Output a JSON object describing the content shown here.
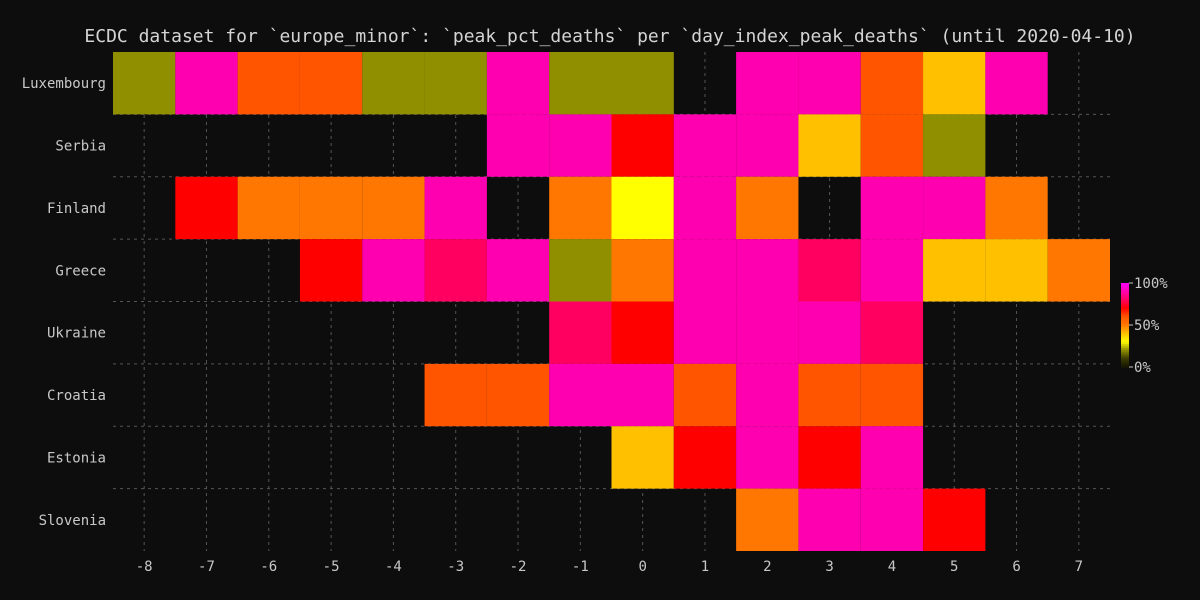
{
  "chart_data": {
    "type": "heatmap",
    "title": "ECDC dataset for `europe_minor`: `peak_pct_deaths` per `day_index_peak_deaths` (until 2020-04-10)",
    "xlabel": "",
    "ylabel": "",
    "x_ticks": [
      -8,
      -7,
      -6,
      -5,
      -4,
      -3,
      -2,
      -1,
      0,
      1,
      2,
      3,
      4,
      5,
      6,
      7
    ],
    "rows": [
      "Luxembourg",
      "Serbia",
      "Finland",
      "Greece",
      "Ukraine",
      "Croatia",
      "Estonia",
      "Slovenia"
    ],
    "colorbar": {
      "ticks": [
        "100%",
        "50%",
        "0%"
      ],
      "range": [
        0,
        100
      ]
    },
    "colors": {
      "background": "#0d0d0d",
      "olive": "#908f00",
      "magenta": "#ff00b0",
      "red": "#ff0000",
      "crimson": "#ff0060",
      "orange": "#ff7700",
      "dark_orange": "#ff5500",
      "amber": "#ffc000",
      "yellow": "#ffff00"
    },
    "cells": [
      {
        "row": "Luxembourg",
        "x": -8,
        "color": "olive"
      },
      {
        "row": "Luxembourg",
        "x": -7,
        "color": "magenta"
      },
      {
        "row": "Luxembourg",
        "x": -6,
        "color": "dark_orange"
      },
      {
        "row": "Luxembourg",
        "x": -5,
        "color": "dark_orange"
      },
      {
        "row": "Luxembourg",
        "x": -4,
        "color": "olive"
      },
      {
        "row": "Luxembourg",
        "x": -3,
        "color": "olive"
      },
      {
        "row": "Luxembourg",
        "x": -2,
        "color": "magenta"
      },
      {
        "row": "Luxembourg",
        "x": -1,
        "color": "olive"
      },
      {
        "row": "Luxembourg",
        "x": 0,
        "color": "olive"
      },
      {
        "row": "Luxembourg",
        "x": 2,
        "color": "magenta"
      },
      {
        "row": "Luxembourg",
        "x": 3,
        "color": "magenta"
      },
      {
        "row": "Luxembourg",
        "x": 4,
        "color": "dark_orange"
      },
      {
        "row": "Luxembourg",
        "x": 5,
        "color": "amber"
      },
      {
        "row": "Luxembourg",
        "x": 6,
        "color": "magenta"
      },
      {
        "row": "Serbia",
        "x": -2,
        "color": "magenta"
      },
      {
        "row": "Serbia",
        "x": -1,
        "color": "magenta"
      },
      {
        "row": "Serbia",
        "x": 0,
        "color": "red"
      },
      {
        "row": "Serbia",
        "x": 1,
        "color": "magenta"
      },
      {
        "row": "Serbia",
        "x": 2,
        "color": "magenta"
      },
      {
        "row": "Serbia",
        "x": 3,
        "color": "amber"
      },
      {
        "row": "Serbia",
        "x": 4,
        "color": "dark_orange"
      },
      {
        "row": "Serbia",
        "x": 5,
        "color": "olive"
      },
      {
        "row": "Finland",
        "x": -7,
        "color": "red"
      },
      {
        "row": "Finland",
        "x": -6,
        "color": "orange"
      },
      {
        "row": "Finland",
        "x": -5,
        "color": "orange"
      },
      {
        "row": "Finland",
        "x": -4,
        "color": "orange"
      },
      {
        "row": "Finland",
        "x": -3,
        "color": "magenta"
      },
      {
        "row": "Finland",
        "x": -1,
        "color": "orange"
      },
      {
        "row": "Finland",
        "x": 0,
        "color": "yellow"
      },
      {
        "row": "Finland",
        "x": 1,
        "color": "magenta"
      },
      {
        "row": "Finland",
        "x": 2,
        "color": "orange"
      },
      {
        "row": "Finland",
        "x": 4,
        "color": "magenta"
      },
      {
        "row": "Finland",
        "x": 5,
        "color": "magenta"
      },
      {
        "row": "Finland",
        "x": 6,
        "color": "orange"
      },
      {
        "row": "Greece",
        "x": -5,
        "color": "red"
      },
      {
        "row": "Greece",
        "x": -4,
        "color": "magenta"
      },
      {
        "row": "Greece",
        "x": -3,
        "color": "crimson"
      },
      {
        "row": "Greece",
        "x": -2,
        "color": "magenta"
      },
      {
        "row": "Greece",
        "x": -1,
        "color": "olive"
      },
      {
        "row": "Greece",
        "x": 0,
        "color": "orange"
      },
      {
        "row": "Greece",
        "x": 1,
        "color": "magenta"
      },
      {
        "row": "Greece",
        "x": 2,
        "color": "magenta"
      },
      {
        "row": "Greece",
        "x": 3,
        "color": "crimson"
      },
      {
        "row": "Greece",
        "x": 4,
        "color": "magenta"
      },
      {
        "row": "Greece",
        "x": 5,
        "color": "amber"
      },
      {
        "row": "Greece",
        "x": 6,
        "color": "amber"
      },
      {
        "row": "Greece",
        "x": 7,
        "color": "orange"
      },
      {
        "row": "Ukraine",
        "x": -1,
        "color": "crimson"
      },
      {
        "row": "Ukraine",
        "x": 0,
        "color": "red"
      },
      {
        "row": "Ukraine",
        "x": 1,
        "color": "magenta"
      },
      {
        "row": "Ukraine",
        "x": 2,
        "color": "magenta"
      },
      {
        "row": "Ukraine",
        "x": 3,
        "color": "magenta"
      },
      {
        "row": "Ukraine",
        "x": 4,
        "color": "crimson"
      },
      {
        "row": "Croatia",
        "x": -3,
        "color": "dark_orange"
      },
      {
        "row": "Croatia",
        "x": -2,
        "color": "dark_orange"
      },
      {
        "row": "Croatia",
        "x": -1,
        "color": "magenta"
      },
      {
        "row": "Croatia",
        "x": 0,
        "color": "magenta"
      },
      {
        "row": "Croatia",
        "x": 1,
        "color": "dark_orange"
      },
      {
        "row": "Croatia",
        "x": 2,
        "color": "magenta"
      },
      {
        "row": "Croatia",
        "x": 3,
        "color": "dark_orange"
      },
      {
        "row": "Croatia",
        "x": 4,
        "color": "dark_orange"
      },
      {
        "row": "Estonia",
        "x": 0,
        "color": "amber"
      },
      {
        "row": "Estonia",
        "x": 1,
        "color": "red"
      },
      {
        "row": "Estonia",
        "x": 2,
        "color": "magenta"
      },
      {
        "row": "Estonia",
        "x": 3,
        "color": "red"
      },
      {
        "row": "Estonia",
        "x": 4,
        "color": "magenta"
      },
      {
        "row": "Slovenia",
        "x": 2,
        "color": "orange"
      },
      {
        "row": "Slovenia",
        "x": 3,
        "color": "magenta"
      },
      {
        "row": "Slovenia",
        "x": 4,
        "color": "magenta"
      },
      {
        "row": "Slovenia",
        "x": 5,
        "color": "red"
      }
    ]
  }
}
